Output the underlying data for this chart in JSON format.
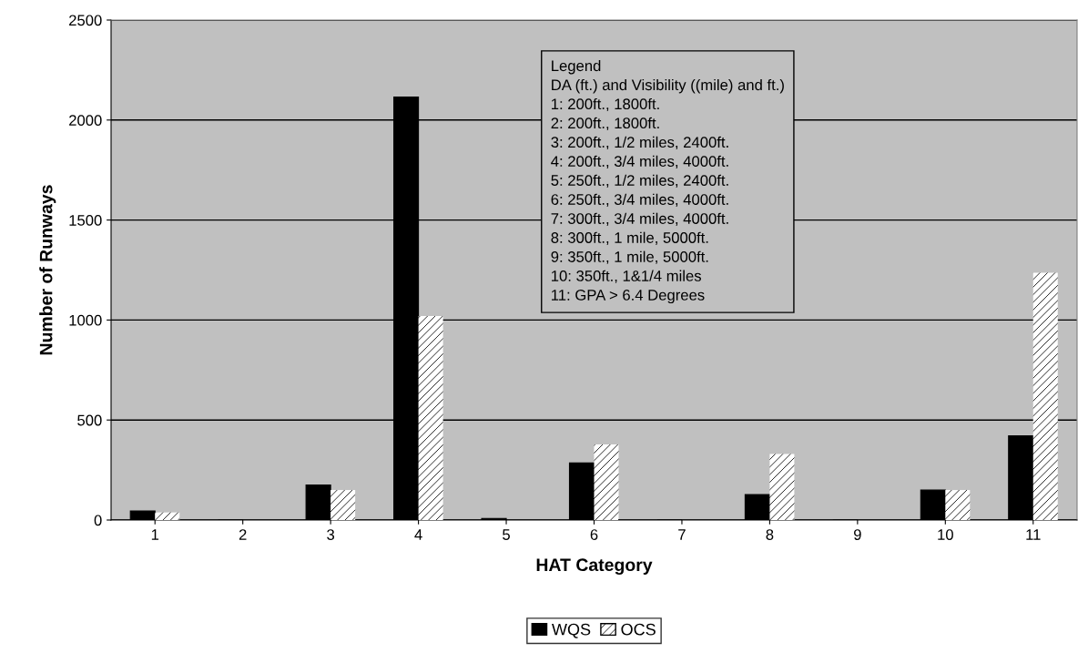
{
  "chart_data": {
    "type": "bar",
    "xlabel": "HAT Category",
    "ylabel": "Number of Runways",
    "categories": [
      "1",
      "2",
      "3",
      "4",
      "5",
      "6",
      "7",
      "8",
      "9",
      "10",
      "11"
    ],
    "series": [
      {
        "name": "WQS",
        "color": "#000000",
        "values": [
          45,
          0,
          175,
          2115,
          8,
          285,
          0,
          127,
          0,
          150,
          421
        ]
      },
      {
        "name": "OCS",
        "color": "#ffffff",
        "values": [
          38,
          0,
          150,
          1020,
          0,
          378,
          0,
          330,
          0,
          150,
          1236
        ]
      }
    ],
    "ylim": [
      0,
      2500
    ],
    "yticks": [
      0,
      500,
      1000,
      1500,
      2000,
      2500
    ],
    "grid": "y",
    "legend": "bottom",
    "annotations": [
      "Legend",
      "DA (ft.) and Visibility ((mile) and ft.)",
      "1: 200ft., 1800ft.",
      "2: 200ft., 1800ft.",
      "3: 200ft., 1/2 miles, 2400ft.",
      "4: 200ft., 3/4 miles, 4000ft.",
      "5: 250ft., 1/2 miles, 2400ft.",
      "6: 250ft., 3/4 miles, 4000ft.",
      "7: 300ft., 3/4 miles, 4000ft.",
      "8: 300ft., 1 mile, 5000ft.",
      "9: 350ft., 1 mile, 5000ft.",
      "10: 350ft., 1&1/4 miles",
      "11: GPA > 6.4 Degrees"
    ]
  }
}
